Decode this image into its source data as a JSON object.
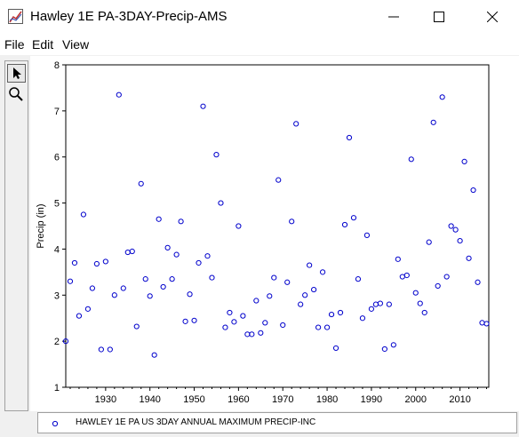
{
  "window": {
    "title": "Hawley 1E PA-3DAY-Precip-AMS"
  },
  "menu": {
    "items": [
      "File",
      "Edit",
      "View"
    ]
  },
  "colors": {
    "series": "#0000cc",
    "plot_background": "#ffffff",
    "frame": "#000000"
  },
  "legend": {
    "entry": "HAWLEY 1E PA US 3DAY ANNUAL MAXIMUM PRECIP-INC"
  },
  "chart_data": {
    "type": "scatter",
    "ylabel": "Precip (in)",
    "xlabel": "",
    "xlim": [
      1921,
      2016.5
    ],
    "ylim": [
      1,
      8
    ],
    "xticks": [
      1930,
      1940,
      1950,
      1960,
      1970,
      1980,
      1990,
      2000,
      2010
    ],
    "yticks": [
      1,
      2,
      3,
      4,
      5,
      6,
      7,
      8
    ],
    "grid": false,
    "legend_position": "bottom",
    "marker": "open-circle",
    "series": [
      {
        "name": "HAWLEY 1E PA US 3DAY ANNUAL MAXIMUM PRECIP-INC",
        "points": [
          [
            1921,
            2.0
          ],
          [
            1922,
            3.3
          ],
          [
            1923,
            3.7
          ],
          [
            1924,
            2.55
          ],
          [
            1925,
            4.75
          ],
          [
            1926,
            2.7
          ],
          [
            1927,
            3.15
          ],
          [
            1928,
            3.68
          ],
          [
            1929,
            1.82
          ],
          [
            1930,
            3.73
          ],
          [
            1931,
            1.82
          ],
          [
            1932,
            3.0
          ],
          [
            1933,
            7.35
          ],
          [
            1934,
            3.15
          ],
          [
            1935,
            3.93
          ],
          [
            1936,
            3.95
          ],
          [
            1937,
            2.32
          ],
          [
            1938,
            5.42
          ],
          [
            1939,
            3.35
          ],
          [
            1940,
            2.98
          ],
          [
            1941,
            1.7
          ],
          [
            1942,
            4.65
          ],
          [
            1943,
            3.18
          ],
          [
            1944,
            4.03
          ],
          [
            1945,
            3.35
          ],
          [
            1946,
            3.88
          ],
          [
            1947,
            4.6
          ],
          [
            1948,
            2.43
          ],
          [
            1949,
            3.02
          ],
          [
            1950,
            2.45
          ],
          [
            1951,
            3.7
          ],
          [
            1952,
            7.1
          ],
          [
            1953,
            3.85
          ],
          [
            1954,
            3.38
          ],
          [
            1955,
            6.05
          ],
          [
            1956,
            5.0
          ],
          [
            1957,
            2.3
          ],
          [
            1958,
            2.62
          ],
          [
            1959,
            2.42
          ],
          [
            1960,
            4.5
          ],
          [
            1961,
            2.55
          ],
          [
            1962,
            2.15
          ],
          [
            1963,
            2.15
          ],
          [
            1964,
            2.88
          ],
          [
            1965,
            2.18
          ],
          [
            1966,
            2.4
          ],
          [
            1967,
            2.98
          ],
          [
            1968,
            3.38
          ],
          [
            1969,
            5.5
          ],
          [
            1970,
            2.35
          ],
          [
            1971,
            3.28
          ],
          [
            1972,
            4.6
          ],
          [
            1973,
            6.72
          ],
          [
            1974,
            2.8
          ],
          [
            1975,
            3.0
          ],
          [
            1976,
            3.65
          ],
          [
            1977,
            3.12
          ],
          [
            1978,
            2.3
          ],
          [
            1979,
            3.5
          ],
          [
            1980,
            2.3
          ],
          [
            1981,
            2.58
          ],
          [
            1982,
            1.85
          ],
          [
            1983,
            2.62
          ],
          [
            1984,
            4.53
          ],
          [
            1985,
            6.42
          ],
          [
            1986,
            4.68
          ],
          [
            1987,
            3.35
          ],
          [
            1988,
            2.5
          ],
          [
            1989,
            4.3
          ],
          [
            1990,
            2.7
          ],
          [
            1991,
            2.8
          ],
          [
            1992,
            2.82
          ],
          [
            1993,
            1.83
          ],
          [
            1994,
            2.8
          ],
          [
            1995,
            1.92
          ],
          [
            1996,
            3.78
          ],
          [
            1997,
            3.4
          ],
          [
            1998,
            3.43
          ],
          [
            1999,
            5.95
          ],
          [
            2000,
            3.05
          ],
          [
            2001,
            2.82
          ],
          [
            2002,
            2.62
          ],
          [
            2003,
            4.15
          ],
          [
            2004,
            6.75
          ],
          [
            2005,
            3.2
          ],
          [
            2006,
            7.3
          ],
          [
            2007,
            3.4
          ],
          [
            2008,
            4.5
          ],
          [
            2009,
            4.42
          ],
          [
            2010,
            4.18
          ],
          [
            2011,
            5.9
          ],
          [
            2012,
            3.8
          ],
          [
            2013,
            5.28
          ],
          [
            2014,
            3.28
          ],
          [
            2015,
            2.4
          ],
          [
            2016,
            2.38
          ]
        ]
      }
    ]
  }
}
